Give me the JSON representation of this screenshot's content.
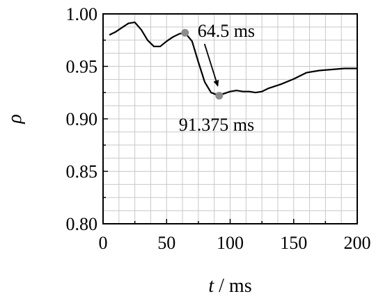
{
  "chart_data": {
    "type": "line",
    "xlabel": "t / ms",
    "ylabel": "ρ",
    "xlim": [
      0,
      200
    ],
    "ylim": [
      0.8,
      1.0
    ],
    "xticks": [
      0,
      50,
      100,
      150,
      200
    ],
    "yticks": [
      0.8,
      0.85,
      0.9,
      0.95,
      1.0
    ],
    "xtick_labels": [
      "0",
      "50",
      "100",
      "150",
      "200"
    ],
    "ytick_labels": [
      "0.80",
      "0.85",
      "0.90",
      "0.95",
      "1.00"
    ],
    "grid": true,
    "series": [
      {
        "x": [
          5,
          10,
          15,
          20,
          25,
          30,
          35,
          40,
          45,
          50,
          55,
          60,
          64.5,
          70,
          75,
          80,
          85,
          91.375,
          95,
          100,
          105,
          110,
          115,
          120,
          125,
          130,
          140,
          150,
          160,
          170,
          180,
          190,
          200
        ],
        "y": [
          0.98,
          0.983,
          0.987,
          0.991,
          0.992,
          0.985,
          0.975,
          0.969,
          0.969,
          0.974,
          0.978,
          0.981,
          0.982,
          0.974,
          0.954,
          0.935,
          0.925,
          0.922,
          0.924,
          0.926,
          0.927,
          0.926,
          0.926,
          0.925,
          0.926,
          0.929,
          0.933,
          0.938,
          0.944,
          0.946,
          0.947,
          0.948,
          0.948
        ]
      }
    ],
    "markers": [
      {
        "x": 64.5,
        "y": 0.982,
        "label": "64.5 ms"
      },
      {
        "x": 91.375,
        "y": 0.922,
        "label": "91.375 ms"
      }
    ]
  }
}
